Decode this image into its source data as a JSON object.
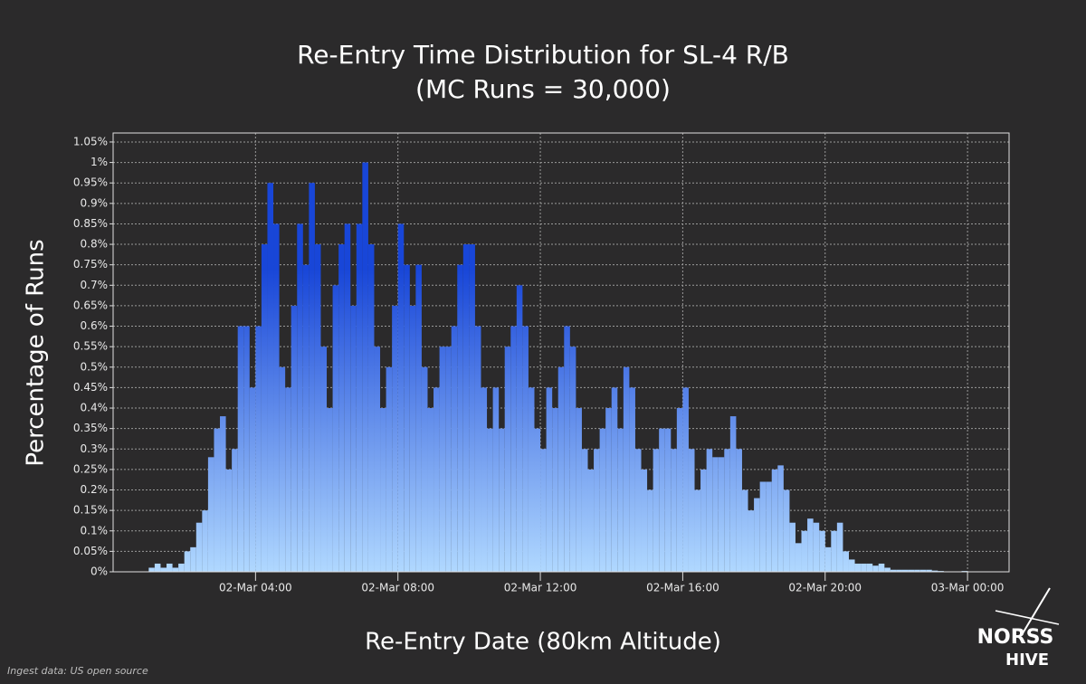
{
  "chart_data": {
    "type": "histogram",
    "title": "Re-Entry Time Distribution for SL-4 R/B",
    "subtitle": "(MC Runs = 30,000)",
    "x_label": "Re-Entry Date (80km Altitude)",
    "y_label": "Percentage of Runs",
    "source": "Ingest data: US open source",
    "logo": [
      "NORSS",
      "HIVE"
    ],
    "color_top": "#1846d8",
    "color_bottom": "#b0d8ff",
    "grid": true,
    "bins": [
      60,
      70,
      80,
      90,
      100,
      110,
      120,
      130,
      140,
      150,
      160,
      170,
      180,
      190,
      200,
      210,
      220,
      230,
      240,
      250,
      260,
      270,
      280,
      290,
      300,
      310,
      320,
      330,
      340,
      350,
      360,
      370,
      380,
      390,
      400,
      410,
      420,
      430,
      440,
      450,
      460,
      470,
      480,
      490,
      500,
      510,
      520,
      530,
      540,
      550,
      560,
      570,
      580,
      590,
      600,
      610,
      620,
      630,
      640,
      650,
      660,
      670,
      680,
      690,
      700,
      710,
      720,
      730,
      740,
      750,
      760,
      770,
      780,
      790,
      800,
      810,
      820,
      830,
      840,
      850,
      860,
      870,
      880,
      890,
      900,
      910,
      920,
      930,
      940,
      950,
      960,
      970,
      980,
      990,
      1000,
      1010,
      1020,
      1030,
      1040,
      1050,
      1060,
      1070,
      1080,
      1090,
      1100,
      1110,
      1120,
      1130,
      1140,
      1150,
      1160,
      1170,
      1180,
      1190,
      1200,
      1210,
      1220,
      1230,
      1240,
      1250,
      1260,
      1270,
      1280,
      1290,
      1300,
      1310,
      1320,
      1330,
      1340,
      1350,
      1360,
      1370,
      1380,
      1390,
      1400,
      1410,
      1420,
      1430,
      1440
    ],
    "values": [
      0.01,
      0.02,
      0.01,
      0.02,
      0.01,
      0.02,
      0.05,
      0.06,
      0.12,
      0.15,
      0.28,
      0.35,
      0.38,
      0.25,
      0.3,
      0.6,
      0.6,
      0.45,
      0.6,
      0.8,
      0.95,
      0.85,
      0.5,
      0.45,
      0.65,
      0.85,
      0.75,
      0.95,
      0.8,
      0.55,
      0.4,
      0.7,
      0.8,
      0.85,
      0.65,
      0.85,
      1.0,
      0.8,
      0.55,
      0.4,
      0.5,
      0.65,
      0.85,
      0.75,
      0.65,
      0.75,
      0.5,
      0.4,
      0.45,
      0.55,
      0.55,
      0.6,
      0.75,
      0.8,
      0.8,
      0.6,
      0.45,
      0.35,
      0.45,
      0.35,
      0.55,
      0.6,
      0.7,
      0.6,
      0.45,
      0.35,
      0.3,
      0.45,
      0.4,
      0.5,
      0.6,
      0.55,
      0.4,
      0.3,
      0.25,
      0.3,
      0.35,
      0.4,
      0.45,
      0.35,
      0.5,
      0.45,
      0.3,
      0.25,
      0.2,
      0.3,
      0.35,
      0.35,
      0.3,
      0.4,
      0.45,
      0.3,
      0.2,
      0.25,
      0.3,
      0.28,
      0.28,
      0.3,
      0.38,
      0.3,
      0.2,
      0.15,
      0.18,
      0.22,
      0.22,
      0.25,
      0.26,
      0.2,
      0.12,
      0.07,
      0.1,
      0.13,
      0.12,
      0.1,
      0.06,
      0.1,
      0.12,
      0.05,
      0.03,
      0.02,
      0.02,
      0.02,
      0.015,
      0.02,
      0.01,
      0.005,
      0.005,
      0.005,
      0.005,
      0.005,
      0.005,
      0.005,
      0.003,
      0.002,
      0.001,
      0,
      0,
      0.002
    ],
    "xlim": [
      0,
      1510
    ],
    "xticks": [
      {
        "value": 240,
        "label": "02-Mar 04:00"
      },
      {
        "value": 480,
        "label": "02-Mar 08:00"
      },
      {
        "value": 720,
        "label": "02-Mar 12:00"
      },
      {
        "value": 960,
        "label": "02-Mar 16:00"
      },
      {
        "value": 1200,
        "label": "02-Mar 20:00"
      },
      {
        "value": 1440,
        "label": "03-Mar 00:00"
      }
    ],
    "ylim": [
      0,
      1.072
    ],
    "yticks": [
      {
        "value": 0,
        "label": "0%"
      },
      {
        "value": 0.05,
        "label": "0.05%"
      },
      {
        "value": 0.1,
        "label": "0.1%"
      },
      {
        "value": 0.15,
        "label": "0.15%"
      },
      {
        "value": 0.2,
        "label": "0.2%"
      },
      {
        "value": 0.25,
        "label": "0.25%"
      },
      {
        "value": 0.3,
        "label": "0.3%"
      },
      {
        "value": 0.35,
        "label": "0.35%"
      },
      {
        "value": 0.4,
        "label": "0.4%"
      },
      {
        "value": 0.45,
        "label": "0.45%"
      },
      {
        "value": 0.5,
        "label": "0.5%"
      },
      {
        "value": 0.55,
        "label": "0.55%"
      },
      {
        "value": 0.6,
        "label": "0.6%"
      },
      {
        "value": 0.65,
        "label": "0.65%"
      },
      {
        "value": 0.7,
        "label": "0.7%"
      },
      {
        "value": 0.75,
        "label": "0.75%"
      },
      {
        "value": 0.8,
        "label": "0.8%"
      },
      {
        "value": 0.85,
        "label": "0.85%"
      },
      {
        "value": 0.9,
        "label": "0.9%"
      },
      {
        "value": 0.95,
        "label": "0.95%"
      },
      {
        "value": 1,
        "label": "1%"
      },
      {
        "value": 1.05,
        "label": "1.05%"
      }
    ]
  }
}
